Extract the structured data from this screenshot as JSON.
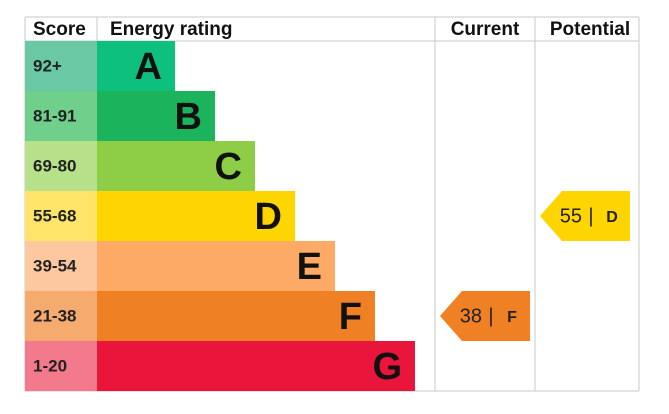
{
  "header": {
    "score": "Score",
    "rating": "Energy rating",
    "current": "Current",
    "potential": "Potential"
  },
  "bands": [
    {
      "score": "92+",
      "letter": "A",
      "color": "#0ec07e",
      "score_color": "#6ac9a4"
    },
    {
      "score": "81-91",
      "letter": "B",
      "color": "#1bb35b",
      "score_color": "#6fcf8b"
    },
    {
      "score": "69-80",
      "letter": "C",
      "color": "#8dce46",
      "score_color": "#b6e08a"
    },
    {
      "score": "55-68",
      "letter": "D",
      "color": "#ffd500",
      "score_color": "#ffe46a"
    },
    {
      "score": "39-54",
      "letter": "E",
      "color": "#fcaa65",
      "score_color": "#fdc8a0"
    },
    {
      "score": "21-38",
      "letter": "F",
      "color": "#ef8023",
      "score_color": "#f5aa6e"
    },
    {
      "score": "1-20",
      "letter": "G",
      "color": "#e9153b",
      "score_color": "#f27a8c"
    }
  ],
  "current": {
    "value": 38,
    "separator": "|",
    "rating": "F",
    "color": "#ef8023"
  },
  "potential": {
    "value": 55,
    "separator": "|",
    "rating": "D",
    "color": "#ffd500"
  }
}
